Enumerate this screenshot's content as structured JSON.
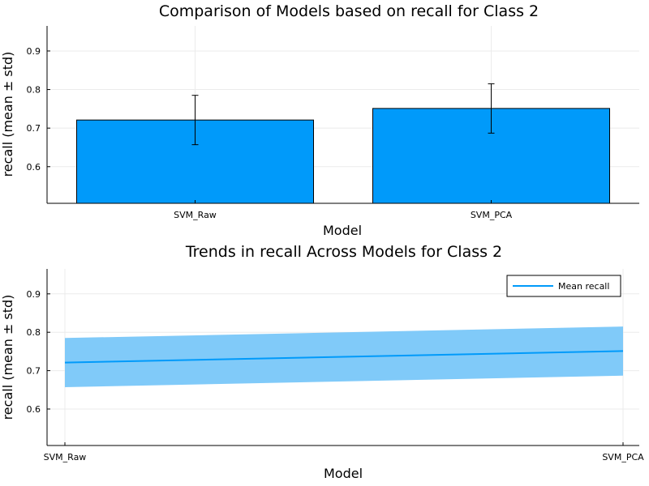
{
  "colors": {
    "bar": "#009AFA",
    "band": "#80CAF9",
    "line": "#009AFA",
    "grid": "#EBEBEB",
    "axis": "#000000"
  },
  "chart_data": [
    {
      "type": "bar",
      "title": "Comparison of Models based on recall for Class 2",
      "xlabel": "Model",
      "ylabel": "recall (mean ± std)",
      "categories": [
        "SVM_Raw",
        "SVM_PCA"
      ],
      "values": [
        0.721,
        0.751
      ],
      "errors": [
        0.064,
        0.064
      ],
      "ylim": [
        0.505,
        0.965
      ],
      "yticks": [
        0.6,
        0.7,
        0.8,
        0.9
      ],
      "ytick_labels": [
        "0.6",
        "0.7",
        "0.8",
        "0.9"
      ],
      "grid": true
    },
    {
      "type": "line",
      "title": "Trends in recall Across Models for Class 2",
      "xlabel": "Model",
      "ylabel": "recall (mean ± std)",
      "categories": [
        "SVM_Raw",
        "SVM_PCA"
      ],
      "series": [
        {
          "name": "Mean recall",
          "values": [
            0.721,
            0.751
          ],
          "lower": [
            0.657,
            0.687
          ],
          "upper": [
            0.785,
            0.815
          ]
        }
      ],
      "ylim": [
        0.505,
        0.965
      ],
      "yticks": [
        0.6,
        0.7,
        0.8,
        0.9
      ],
      "ytick_labels": [
        "0.6",
        "0.7",
        "0.8",
        "0.9"
      ],
      "legend": "top-right",
      "grid": true
    }
  ]
}
